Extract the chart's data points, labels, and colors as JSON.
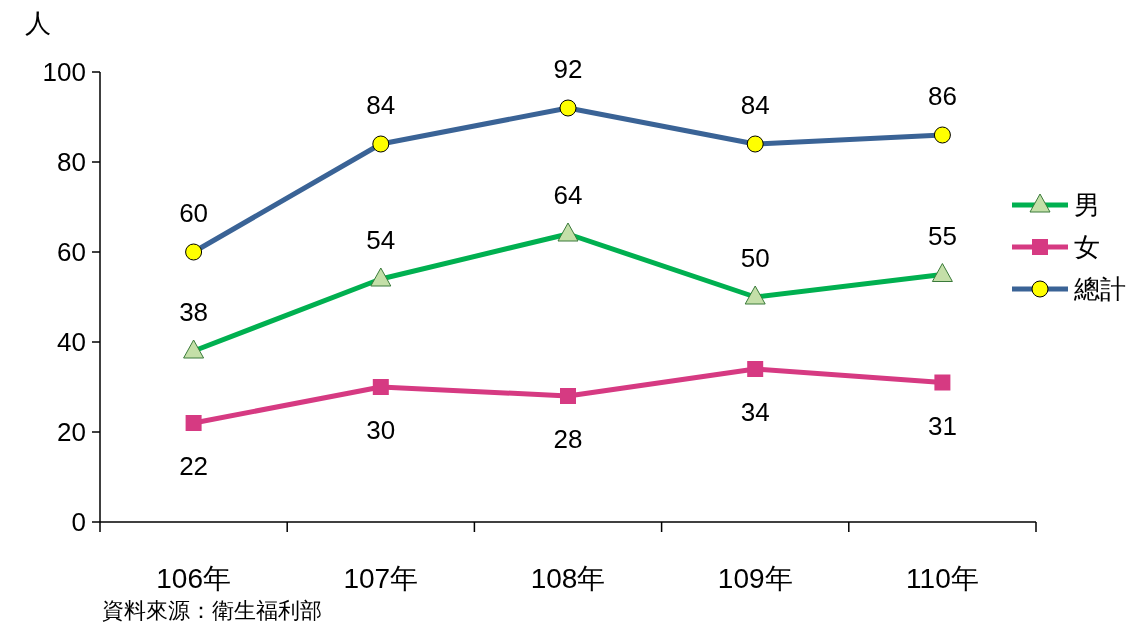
{
  "chart_data": {
    "type": "line",
    "ylabel": "人",
    "categories": [
      "106年",
      "107年",
      "108年",
      "109年",
      "110年"
    ],
    "series": [
      {
        "name": "男",
        "color": "#00b050",
        "marker": "triangle",
        "values": [
          38,
          54,
          64,
          50,
          55
        ]
      },
      {
        "name": "女",
        "color": "#d63a82",
        "marker": "square",
        "values": [
          22,
          30,
          28,
          34,
          31
        ]
      },
      {
        "name": "總計",
        "color": "#3a6396",
        "marker": "circle",
        "values": [
          60,
          84,
          92,
          84,
          86
        ]
      }
    ],
    "ylim": [
      0,
      100
    ],
    "yticks": [
      0,
      20,
      40,
      60,
      80,
      100
    ],
    "grid": false,
    "legend": "right",
    "data_labels": true,
    "line_style": "solid",
    "annotations": [
      "資料來源：衛生福利部"
    ]
  }
}
